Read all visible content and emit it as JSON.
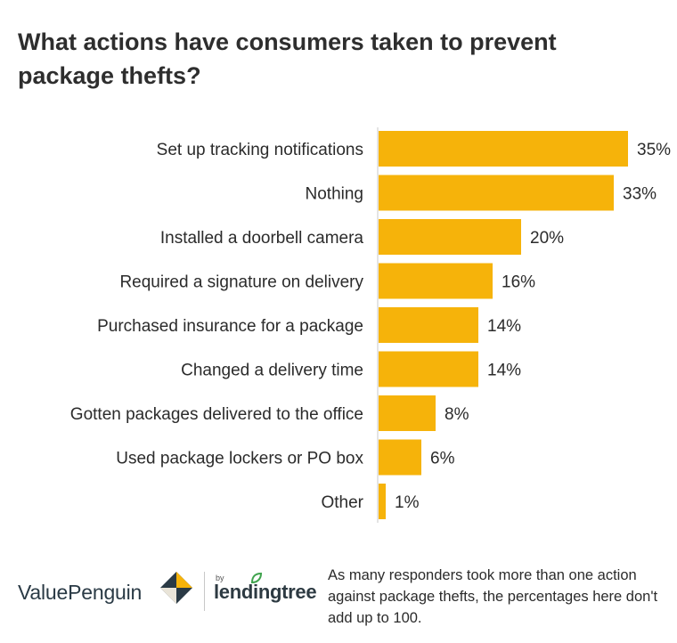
{
  "title": "What actions have consumers taken to prevent package thefts?",
  "chart_data": {
    "type": "bar",
    "orientation": "horizontal",
    "categories": [
      "Set up tracking notifications",
      "Nothing",
      "Installed a doorbell camera",
      "Required a signature on delivery",
      "Purchased insurance for a package",
      "Changed a delivery time",
      "Gotten packages delivered to the office",
      "Used package lockers or PO box",
      "Other"
    ],
    "values": [
      35,
      33,
      20,
      16,
      14,
      14,
      8,
      6,
      1
    ],
    "value_labels": [
      "35%",
      "33%",
      "20%",
      "16%",
      "14%",
      "14%",
      "8%",
      "6%",
      "1%"
    ],
    "unit": "%",
    "bar_color": "#F6B30A",
    "axis_line_color": "#c9c9c9",
    "grid": false
  },
  "footer": {
    "brand": "ValuePenguin",
    "by_label": "by",
    "partner": "lendingtree",
    "note": "As many responders took more than one action against package thefts, the percentages here don't add up to 100."
  },
  "colors": {
    "brand_dark": "#2a3a45",
    "brand_gold": "#F6B30A",
    "brand_green": "#3fa34d"
  }
}
